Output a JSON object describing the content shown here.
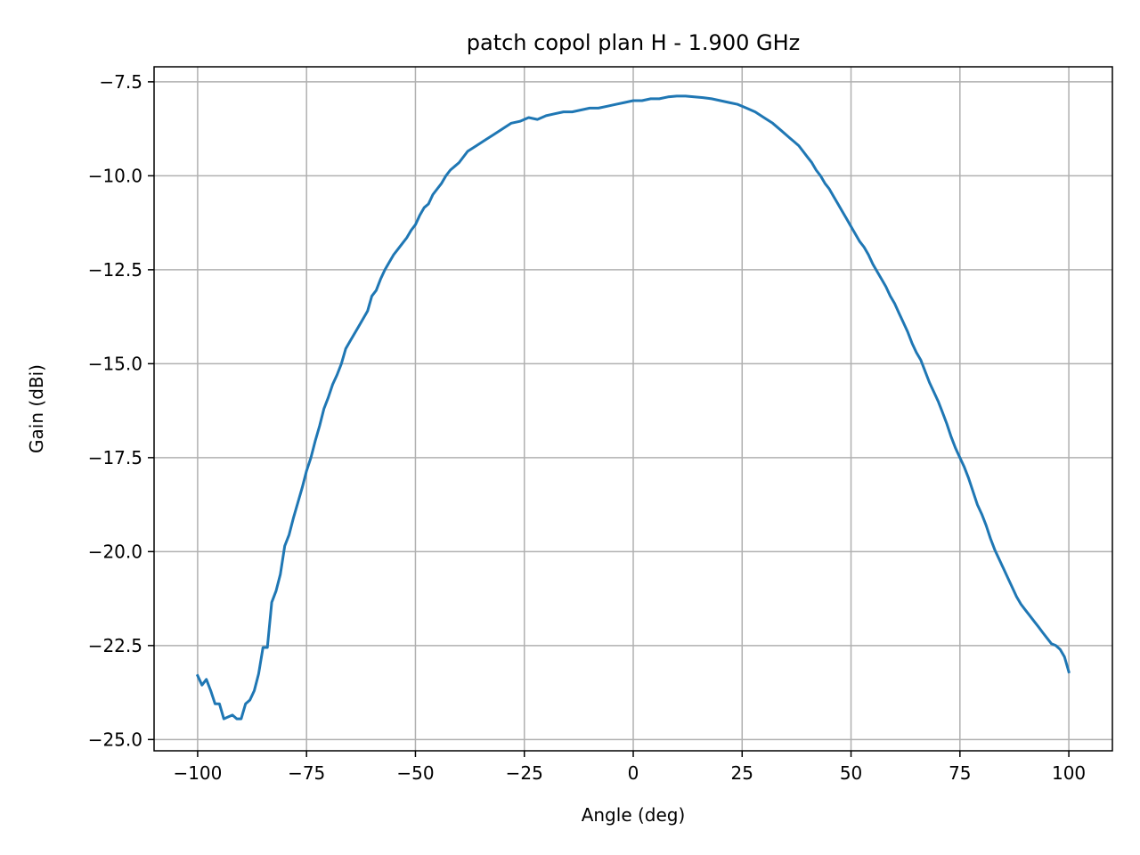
{
  "chart_data": {
    "type": "line",
    "title": "patch copol plan H - 1.900 GHz",
    "xlabel": "Angle (deg)",
    "ylabel": "Gain (dBi)",
    "xlim": [
      -110,
      110
    ],
    "ylim": [
      -25.3,
      -7.1
    ],
    "grid": true,
    "x_ticks": [
      -100,
      -75,
      -50,
      -25,
      0,
      25,
      50,
      75,
      100
    ],
    "y_ticks": [
      -25.0,
      -22.5,
      -20.0,
      -17.5,
      -15.0,
      -12.5,
      -10.0,
      -7.5
    ],
    "x_tick_labels": [
      "−100",
      "−75",
      "−50",
      "−25",
      "0",
      "25",
      "50",
      "75",
      "100"
    ],
    "y_tick_labels": [
      "−25.0",
      "−22.5",
      "−20.0",
      "−17.5",
      "−15.0",
      "−12.5",
      "−10.0",
      "−7.5"
    ],
    "colors": {
      "line": "#1f77b4",
      "grid": "#b0b0b0",
      "axes": "#000000"
    },
    "series": [
      {
        "x": [
          -100,
          -99,
          -98,
          -97,
          -96,
          -95,
          -94,
          -93,
          -92,
          -91,
          -90,
          -89,
          -88,
          -87,
          -86,
          -85,
          -84,
          -83,
          -82,
          -81,
          -80,
          -79,
          -78,
          -77,
          -76,
          -75,
          -74,
          -73,
          -72,
          -71,
          -70,
          -69,
          -68,
          -67,
          -66,
          -65,
          -64,
          -63,
          -62,
          -61,
          -60,
          -59,
          -58,
          -57,
          -56,
          -55,
          -54,
          -53,
          -52,
          -51,
          -50,
          -49,
          -48,
          -47,
          -46,
          -45,
          -44,
          -43,
          -42,
          -41,
          -40,
          -38,
          -36,
          -34,
          -32,
          -30,
          -28,
          -26,
          -24,
          -22,
          -20,
          -18,
          -16,
          -14,
          -12,
          -10,
          -8,
          -6,
          -4,
          -2,
          0,
          2,
          4,
          6,
          8,
          10,
          12,
          14,
          16,
          18,
          20,
          22,
          24,
          26,
          28,
          30,
          32,
          34,
          36,
          38,
          40,
          41,
          42,
          43,
          44,
          45,
          46,
          47,
          48,
          49,
          50,
          51,
          52,
          53,
          54,
          55,
          56,
          57,
          58,
          59,
          60,
          61,
          62,
          63,
          64,
          65,
          66,
          67,
          68,
          69,
          70,
          71,
          72,
          73,
          74,
          75,
          76,
          77,
          78,
          79,
          80,
          81,
          82,
          83,
          84,
          85,
          86,
          87,
          88,
          89,
          90,
          91,
          92,
          93,
          94,
          95,
          96,
          97,
          98,
          99,
          100
        ],
        "y": [
          -23.3,
          -23.55,
          -23.4,
          -23.7,
          -24.05,
          -24.05,
          -24.45,
          -24.4,
          -24.35,
          -24.45,
          -24.45,
          -24.05,
          -23.95,
          -23.7,
          -23.25,
          -22.55,
          -22.55,
          -21.35,
          -21.05,
          -20.6,
          -19.85,
          -19.55,
          -19.1,
          -18.7,
          -18.3,
          -17.85,
          -17.5,
          -17.05,
          -16.65,
          -16.2,
          -15.9,
          -15.55,
          -15.3,
          -15.0,
          -14.6,
          -14.4,
          -14.2,
          -14.0,
          -13.8,
          -13.6,
          -13.2,
          -13.05,
          -12.75,
          -12.5,
          -12.3,
          -12.1,
          -11.95,
          -11.8,
          -11.65,
          -11.45,
          -11.3,
          -11.05,
          -10.85,
          -10.75,
          -10.5,
          -10.35,
          -10.2,
          -10.0,
          -9.85,
          -9.75,
          -9.65,
          -9.35,
          -9.2,
          -9.05,
          -8.9,
          -8.75,
          -8.6,
          -8.55,
          -8.45,
          -8.5,
          -8.4,
          -8.35,
          -8.3,
          -8.3,
          -8.25,
          -8.2,
          -8.2,
          -8.15,
          -8.1,
          -8.05,
          -8.0,
          -8.0,
          -7.95,
          -7.95,
          -7.9,
          -7.88,
          -7.88,
          -7.9,
          -7.92,
          -7.95,
          -8.0,
          -8.05,
          -8.1,
          -8.2,
          -8.3,
          -8.45,
          -8.6,
          -8.8,
          -9.0,
          -9.2,
          -9.5,
          -9.65,
          -9.85,
          -10.0,
          -10.2,
          -10.35,
          -10.55,
          -10.75,
          -10.95,
          -11.15,
          -11.35,
          -11.55,
          -11.75,
          -11.9,
          -12.1,
          -12.35,
          -12.55,
          -12.75,
          -12.95,
          -13.2,
          -13.4,
          -13.65,
          -13.9,
          -14.15,
          -14.45,
          -14.7,
          -14.9,
          -15.2,
          -15.5,
          -15.75,
          -16.0,
          -16.3,
          -16.6,
          -16.95,
          -17.25,
          -17.5,
          -17.75,
          -18.05,
          -18.4,
          -18.75,
          -19.0,
          -19.3,
          -19.65,
          -19.95,
          -20.2,
          -20.45,
          -20.7,
          -20.95,
          -21.2,
          -21.4,
          -21.55,
          -21.7,
          -21.85,
          -22.0,
          -22.15,
          -22.3,
          -22.45,
          -22.5,
          -22.6,
          -22.8,
          -23.2
        ]
      }
    ]
  }
}
